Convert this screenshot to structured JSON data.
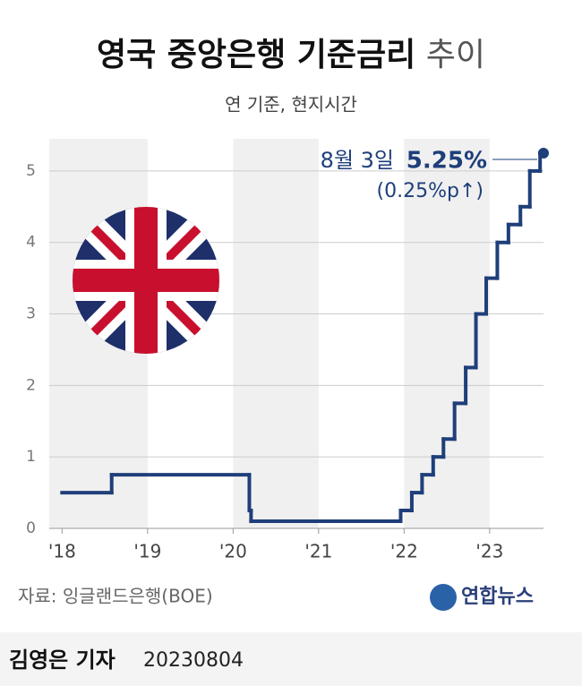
{
  "chart_data": {
    "type": "step",
    "title": [
      "영국 중앙은행 기준금리",
      "추이"
    ],
    "subtitle": "연 기준, 현지시간",
    "x": [
      2018.0,
      2018.58,
      2020.19,
      2020.21,
      2021.96,
      2022.09,
      2022.21,
      2022.34,
      2022.46,
      2022.59,
      2022.72,
      2022.84,
      2022.96,
      2023.09,
      2023.22,
      2023.36,
      2023.47,
      2023.59
    ],
    "values": [
      0.5,
      0.75,
      0.25,
      0.1,
      0.25,
      0.5,
      0.75,
      1.0,
      1.25,
      1.75,
      2.25,
      3.0,
      3.5,
      4.0,
      4.25,
      4.5,
      5.0,
      5.25
    ],
    "color": "#1f3f7a",
    "xlim": [
      2017.85,
      2023.63
    ],
    "xticks": [
      {
        "value": 2018,
        "label": "'18"
      },
      {
        "value": 2019,
        "label": "'19"
      },
      {
        "value": 2020,
        "label": "'20"
      },
      {
        "value": 2021,
        "label": "'21"
      },
      {
        "value": 2022,
        "label": "'22"
      },
      {
        "value": 2023,
        "label": "'23"
      }
    ],
    "ylim": [
      0,
      5.45
    ],
    "yticks": [
      0,
      1,
      2,
      3,
      4,
      5
    ],
    "grid": true,
    "annotation": {
      "date": "8월 3일",
      "value": "5.25%",
      "change": "(0.25%p↑)"
    },
    "source": "자료: 잉글랜드은행(BOE)",
    "logo": "연합뉴스",
    "byline": "김영은 기자",
    "date": "20230804"
  }
}
